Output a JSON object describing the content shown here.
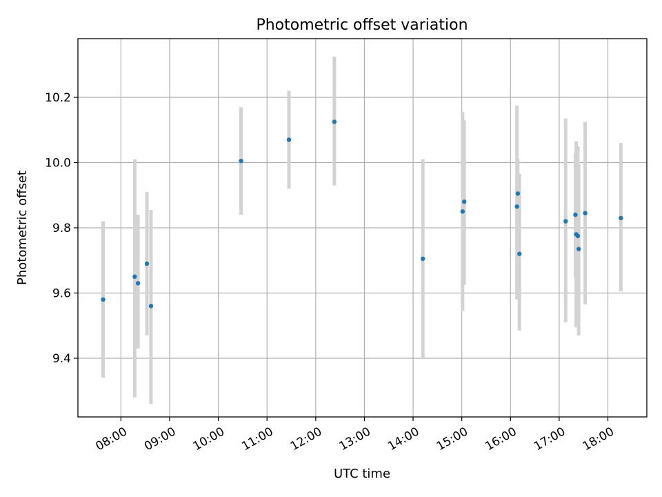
{
  "chart_data": {
    "type": "scatter",
    "title": "Photometric offset variation",
    "xlabel": "UTC time",
    "ylabel": "Photometric offset",
    "x_unit": "HH:MM (UTC)",
    "xlim": [
      "07:07",
      "18:48"
    ],
    "ylim": [
      9.22,
      10.38
    ],
    "x_ticks": [
      "08:00",
      "09:00",
      "10:00",
      "11:00",
      "12:00",
      "13:00",
      "14:00",
      "15:00",
      "16:00",
      "17:00",
      "18:00"
    ],
    "y_ticks": [
      9.4,
      9.6,
      9.8,
      10.0,
      10.2
    ],
    "grid": true,
    "colors": {
      "point": "#1f77b4",
      "errorbar": "#d3d3d3",
      "grid": "#b0b0b0"
    },
    "points": [
      {
        "time": "07:38",
        "y": 9.58,
        "ylow": 9.34,
        "yhigh": 9.82
      },
      {
        "time": "08:17",
        "y": 9.65,
        "ylow": 9.28,
        "yhigh": 10.01
      },
      {
        "time": "08:21",
        "y": 9.63,
        "ylow": 9.43,
        "yhigh": 9.84
      },
      {
        "time": "08:32",
        "y": 9.69,
        "ylow": 9.47,
        "yhigh": 9.91
      },
      {
        "time": "08:37",
        "y": 9.56,
        "ylow": 9.26,
        "yhigh": 9.855
      },
      {
        "time": "10:28",
        "y": 10.005,
        "ylow": 9.84,
        "yhigh": 10.17
      },
      {
        "time": "11:27",
        "y": 10.07,
        "ylow": 9.92,
        "yhigh": 10.22
      },
      {
        "time": "12:23",
        "y": 10.125,
        "ylow": 9.93,
        "yhigh": 10.325
      },
      {
        "time": "14:12",
        "y": 9.705,
        "ylow": 9.4,
        "yhigh": 10.01
      },
      {
        "time": "15:01",
        "y": 9.85,
        "ylow": 9.545,
        "yhigh": 10.155
      },
      {
        "time": "15:03",
        "y": 9.88,
        "ylow": 9.625,
        "yhigh": 10.13
      },
      {
        "time": "16:08",
        "y": 9.865,
        "ylow": 9.58,
        "yhigh": 10.175
      },
      {
        "time": "16:09",
        "y": 9.905,
        "ylow": 9.58,
        "yhigh": 10.01
      },
      {
        "time": "16:11",
        "y": 9.72,
        "ylow": 9.485,
        "yhigh": 9.965
      },
      {
        "time": "17:08",
        "y": 9.82,
        "ylow": 9.51,
        "yhigh": 10.135
      },
      {
        "time": "17:20",
        "y": 9.84,
        "ylow": 9.65,
        "yhigh": 10.03
      },
      {
        "time": "17:21",
        "y": 9.78,
        "ylow": 9.495,
        "yhigh": 10.065
      },
      {
        "time": "17:23",
        "y": 9.775,
        "ylow": 9.495,
        "yhigh": 10.05
      },
      {
        "time": "17:24",
        "y": 9.735,
        "ylow": 9.47,
        "yhigh": 9.995
      },
      {
        "time": "17:32",
        "y": 9.845,
        "ylow": 9.565,
        "yhigh": 10.125
      },
      {
        "time": "18:16",
        "y": 9.83,
        "ylow": 9.605,
        "yhigh": 10.06
      }
    ]
  }
}
